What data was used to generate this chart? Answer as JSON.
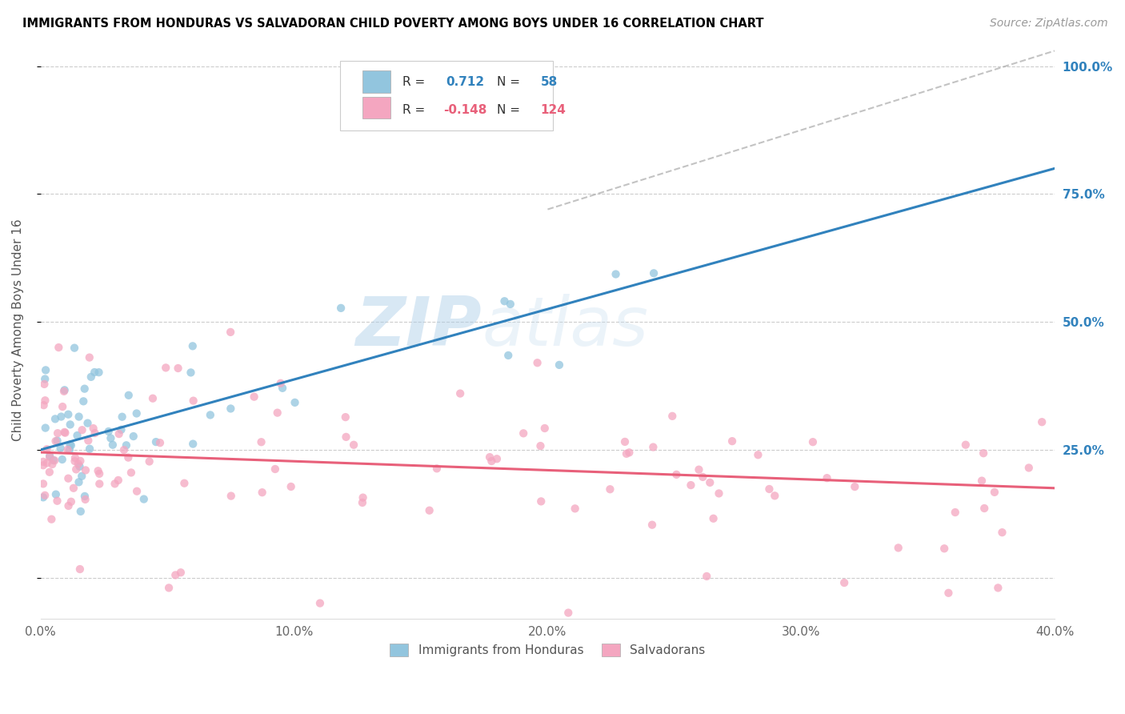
{
  "title": "IMMIGRANTS FROM HONDURAS VS SALVADORAN CHILD POVERTY AMONG BOYS UNDER 16 CORRELATION CHART",
  "source": "Source: ZipAtlas.com",
  "ylabel": "Child Poverty Among Boys Under 16",
  "x_min": 0.0,
  "x_max": 0.4,
  "y_min": -0.08,
  "y_max": 1.05,
  "blue_R": 0.712,
  "blue_N": 58,
  "pink_R": -0.148,
  "pink_N": 124,
  "blue_color": "#92c5de",
  "pink_color": "#f4a6c0",
  "blue_line_color": "#3182bd",
  "pink_line_color": "#e8607a",
  "watermark_zip": "ZIP",
  "watermark_atlas": "atlas",
  "legend_blue_label": "Immigrants from Honduras",
  "legend_pink_label": "Salvadorans",
  "blue_line_x0": 0.0,
  "blue_line_y0": 0.25,
  "blue_line_x1": 0.4,
  "blue_line_y1": 0.8,
  "pink_line_x0": 0.0,
  "pink_line_y0": 0.245,
  "pink_line_x1": 0.4,
  "pink_line_y1": 0.175,
  "dash_line_x0": 0.2,
  "dash_line_y0": 0.72,
  "dash_line_x1": 0.4,
  "dash_line_y1": 1.03,
  "yticks": [
    0.0,
    0.25,
    0.5,
    0.75,
    1.0
  ],
  "ytick_labels": [
    "",
    "25.0%",
    "50.0%",
    "75.0%",
    "100.0%"
  ],
  "xticks": [
    0.0,
    0.1,
    0.2,
    0.3,
    0.4
  ],
  "xtick_labels": [
    "0.0%",
    "10.0%",
    "20.0%",
    "30.0%",
    "40.0%"
  ]
}
